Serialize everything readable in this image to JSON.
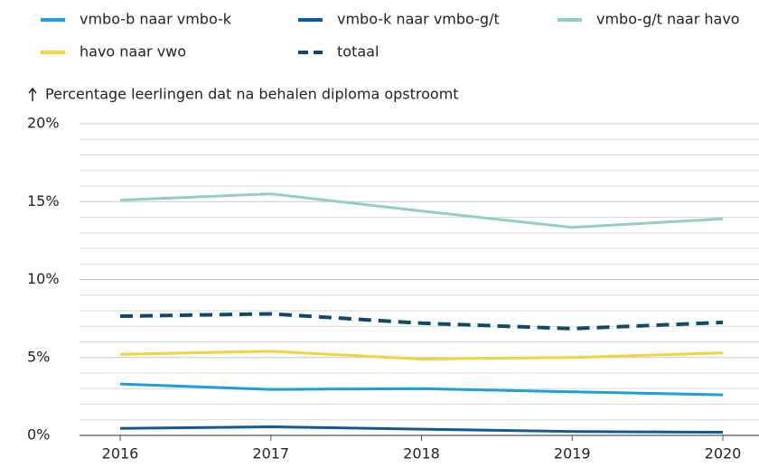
{
  "chart_data": {
    "type": "line",
    "y_label": "Percentage leerlingen dat na behalen diploma opstroomt",
    "categories": [
      "2016",
      "2017",
      "2018",
      "2019",
      "2020"
    ],
    "series": [
      {
        "name": "vmbo-b naar vmbo-k",
        "color": "#1a9fe0",
        "values": [
          3.3,
          2.95,
          3.0,
          2.8,
          2.6
        ]
      },
      {
        "name": "vmbo-k naar vmbo-g/t",
        "color": "#0b5a9c",
        "values": [
          0.45,
          0.55,
          0.4,
          0.25,
          0.2
        ]
      },
      {
        "name": "vmbo-g/t naar havo",
        "color": "#8ed0c1",
        "values": [
          15.1,
          15.5,
          14.4,
          13.35,
          13.9
        ]
      },
      {
        "name": "havo naar vwo",
        "color": "#f5d23a",
        "values": [
          5.2,
          5.4,
          4.9,
          5.0,
          5.3
        ]
      },
      {
        "name": "totaal",
        "color": "#0d4a6b",
        "dashed": true,
        "values": [
          7.65,
          7.8,
          7.2,
          6.85,
          7.25
        ]
      }
    ],
    "ylim": [
      0,
      20
    ],
    "yticks": [
      {
        "value": 0,
        "label": "0%"
      },
      {
        "value": 5,
        "label": "5%"
      },
      {
        "value": 10,
        "label": "10%"
      },
      {
        "value": 15,
        "label": "15%"
      },
      {
        "value": 20,
        "label": "20%"
      }
    ],
    "yminorticks": [
      1,
      2,
      3,
      4,
      6,
      7,
      8,
      9,
      11,
      12,
      13,
      14,
      16,
      17,
      18,
      19
    ],
    "grid": true
  }
}
